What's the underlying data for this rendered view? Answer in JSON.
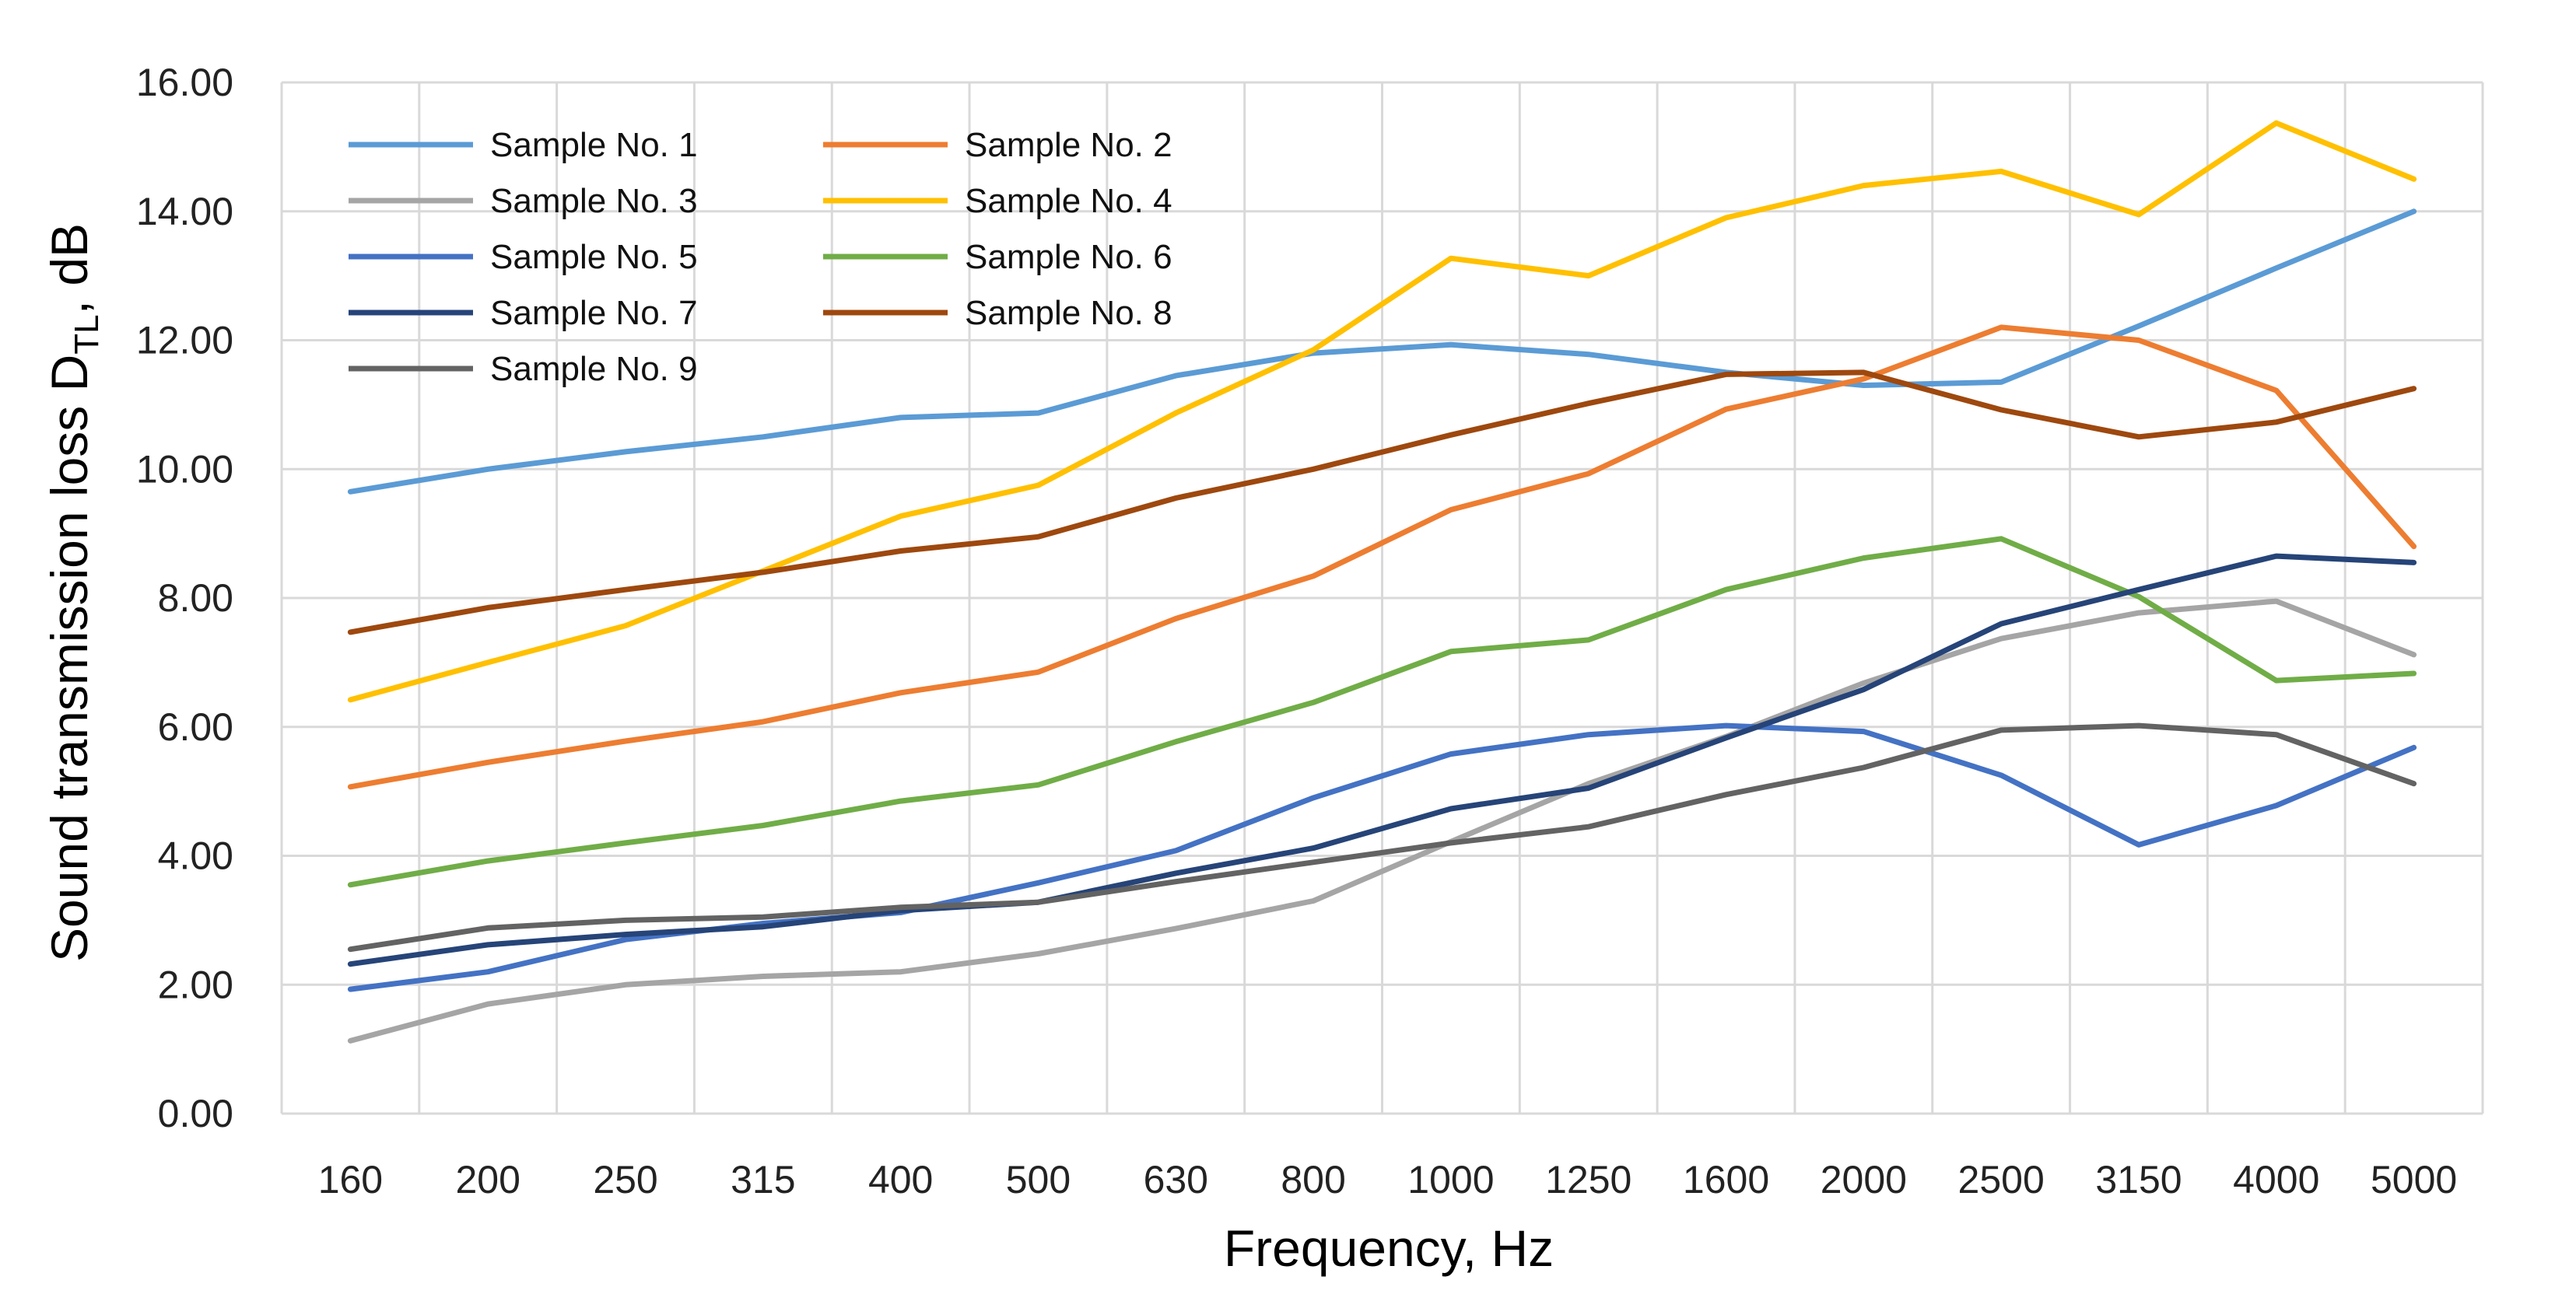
{
  "chart_data": {
    "type": "line",
    "title": "",
    "xlabel": "Frequency, Hz",
    "ylabel_main": "Sound transmission loss D",
    "ylabel_sub": "TL",
    "ylabel_tail": ", dB",
    "ylim": [
      0,
      16
    ],
    "yticks": [
      "0.00",
      "2.00",
      "4.00",
      "6.00",
      "8.00",
      "10.00",
      "12.00",
      "14.00",
      "16.00"
    ],
    "grid": true,
    "legend_position": "top-left",
    "categories": [
      "160",
      "200",
      "250",
      "315",
      "400",
      "500",
      "630",
      "800",
      "1000",
      "1250",
      "1600",
      "2000",
      "2500",
      "3150",
      "4000",
      "5000"
    ],
    "series": [
      {
        "name": "Sample No. 1",
        "color": "#5B9BD5",
        "values": [
          9.65,
          10.0,
          10.27,
          10.5,
          10.8,
          10.87,
          11.45,
          11.8,
          11.93,
          11.78,
          11.5,
          11.3,
          11.35,
          12.22,
          13.12,
          14.0
        ]
      },
      {
        "name": "Sample No. 2",
        "color": "#ED7D31",
        "values": [
          5.07,
          5.45,
          5.78,
          6.08,
          6.53,
          6.85,
          7.68,
          8.34,
          9.37,
          9.93,
          10.93,
          11.4,
          12.2,
          12.0,
          11.22,
          8.8
        ]
      },
      {
        "name": "Sample No. 3",
        "color": "#A5A5A5",
        "values": [
          1.13,
          1.7,
          2.0,
          2.13,
          2.2,
          2.48,
          2.87,
          3.3,
          4.22,
          5.12,
          5.85,
          6.68,
          7.37,
          7.77,
          7.95,
          7.12
        ]
      },
      {
        "name": "Sample No. 4",
        "color": "#FFC000",
        "values": [
          6.42,
          7.0,
          7.57,
          8.42,
          9.27,
          9.75,
          10.87,
          11.85,
          13.27,
          13.0,
          13.9,
          14.4,
          14.62,
          13.95,
          15.37,
          14.5
        ]
      },
      {
        "name": "Sample No. 5",
        "color": "#4472C4",
        "values": [
          1.93,
          2.2,
          2.7,
          2.95,
          3.12,
          3.58,
          4.08,
          4.9,
          5.58,
          5.88,
          6.02,
          5.93,
          5.25,
          4.17,
          4.78,
          5.68
        ]
      },
      {
        "name": "Sample No. 6",
        "color": "#70AD47",
        "values": [
          3.55,
          3.92,
          4.2,
          4.47,
          4.85,
          5.1,
          5.77,
          6.38,
          7.17,
          7.35,
          8.13,
          8.62,
          8.92,
          8.02,
          6.72,
          6.83
        ]
      },
      {
        "name": "Sample No. 7",
        "color": "#264478",
        "values": [
          2.32,
          2.62,
          2.78,
          2.9,
          3.15,
          3.28,
          3.73,
          4.12,
          4.73,
          5.05,
          5.83,
          6.58,
          7.6,
          8.13,
          8.65,
          8.55
        ]
      },
      {
        "name": "Sample No. 8",
        "color": "#9E480E",
        "values": [
          7.47,
          7.85,
          8.13,
          8.4,
          8.73,
          8.95,
          9.55,
          10.0,
          10.53,
          11.02,
          11.47,
          11.5,
          10.92,
          10.5,
          10.73,
          11.25
        ]
      },
      {
        "name": "Sample No. 9",
        "color": "#636363",
        "values": [
          2.55,
          2.88,
          3.0,
          3.05,
          3.2,
          3.28,
          3.6,
          3.9,
          4.2,
          4.45,
          4.95,
          5.37,
          5.95,
          6.02,
          5.88,
          5.12
        ]
      }
    ]
  }
}
